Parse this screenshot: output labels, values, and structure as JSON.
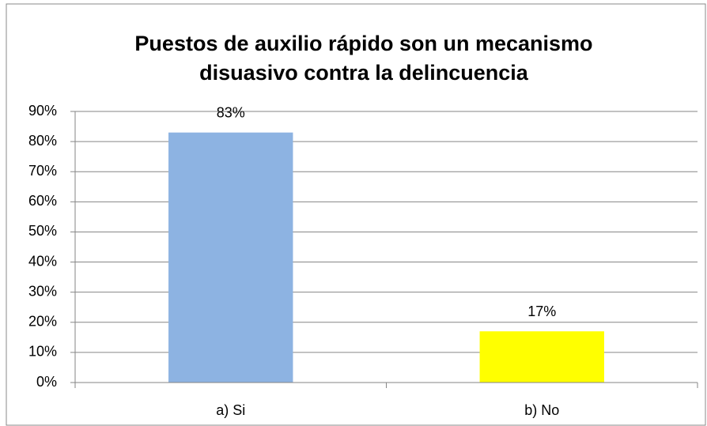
{
  "chart_data": {
    "type": "bar",
    "title": [
      "Puestos de auxilio rápido son un mecanismo",
      "disuasivo contra la delincuencia"
    ],
    "categories": [
      "a) Si",
      "b) No"
    ],
    "values": [
      83,
      17
    ],
    "value_labels": [
      "83%",
      "17%"
    ],
    "colors": [
      "#8db3e2",
      "#ffff00"
    ],
    "ylim": [
      0,
      90
    ],
    "yticks": [
      {
        "value": 0,
        "label": "0%"
      },
      {
        "value": 10,
        "label": "10%"
      },
      {
        "value": 20,
        "label": "20%"
      },
      {
        "value": 30,
        "label": "30%"
      },
      {
        "value": 40,
        "label": "40%"
      },
      {
        "value": 50,
        "label": "50%"
      },
      {
        "value": 60,
        "label": "60%"
      },
      {
        "value": 70,
        "label": "70%"
      },
      {
        "value": 80,
        "label": "80%"
      },
      {
        "value": 90,
        "label": "90%"
      }
    ],
    "grid": true
  }
}
